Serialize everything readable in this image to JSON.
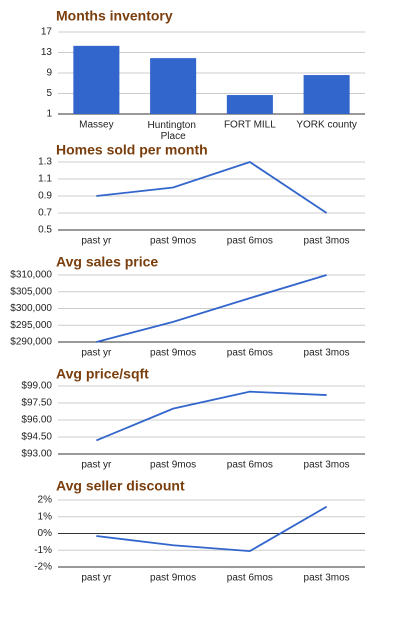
{
  "chart_data": [
    {
      "type": "bar",
      "title": "Months inventory",
      "categories": [
        "Massey",
        "Huntington Place",
        "FORT MILL",
        "YORK county"
      ],
      "values": [
        14.3,
        11.9,
        4.7,
        8.6
      ],
      "color": "#3366cc",
      "ylim": [
        1,
        17
      ],
      "yticks": [
        1,
        5,
        9,
        13,
        17
      ],
      "grid": true
    },
    {
      "type": "line",
      "title": "Homes sold per month",
      "categories": [
        "past yr",
        "past 9mos",
        "past 6mos",
        "past 3mos"
      ],
      "values": [
        0.9,
        1.0,
        1.3,
        0.7
      ],
      "color": "#3366cc",
      "ylim": [
        0.5,
        1.3
      ],
      "yticks": [
        0.5,
        0.7,
        0.9,
        1.1,
        1.3
      ],
      "grid": true
    },
    {
      "type": "line",
      "title": "Avg sales price",
      "categories": [
        "past yr",
        "past 9mos",
        "past 6mos",
        "past 3mos"
      ],
      "values": [
        290000,
        296000,
        303100,
        310000
      ],
      "color": "#3366cc",
      "ylim": [
        290000,
        310000
      ],
      "yticks": [
        {
          "value": 290000,
          "label": "$290,000"
        },
        {
          "value": 295000,
          "label": "$295,000"
        },
        {
          "value": 300000,
          "label": "$300,000"
        },
        {
          "value": 305000,
          "label": "$305,000"
        },
        {
          "value": 310000,
          "label": "$310,000"
        }
      ],
      "grid": true
    },
    {
      "type": "line",
      "title": "Avg price/sqft",
      "categories": [
        "past yr",
        "past 9mos",
        "past 6mos",
        "past 3mos"
      ],
      "values": [
        94.2,
        97.0,
        98.5,
        98.2
      ],
      "color": "#3366cc",
      "ylim": [
        93,
        99
      ],
      "yticks": [
        {
          "value": 93,
          "label": "$93.00"
        },
        {
          "value": 94.5,
          "label": "$94.50"
        },
        {
          "value": 96,
          "label": "$96.00"
        },
        {
          "value": 97.5,
          "label": "$97.50"
        },
        {
          "value": 99,
          "label": "$99.00"
        }
      ],
      "grid": true
    },
    {
      "type": "line",
      "title": "Avg seller discount",
      "categories": [
        "past yr",
        "past 9mos",
        "past 6mos",
        "past 3mos"
      ],
      "values": [
        -0.15,
        -0.7,
        -1.05,
        1.6
      ],
      "color": "#3366cc",
      "ylim": [
        -2,
        2
      ],
      "yticks": [
        {
          "value": -2,
          "label": "-2%"
        },
        {
          "value": -1,
          "label": "-1%"
        },
        {
          "value": 0,
          "label": "0%"
        },
        {
          "value": 1,
          "label": "1%"
        },
        {
          "value": 2,
          "label": "2%"
        }
      ],
      "grid": true
    }
  ]
}
